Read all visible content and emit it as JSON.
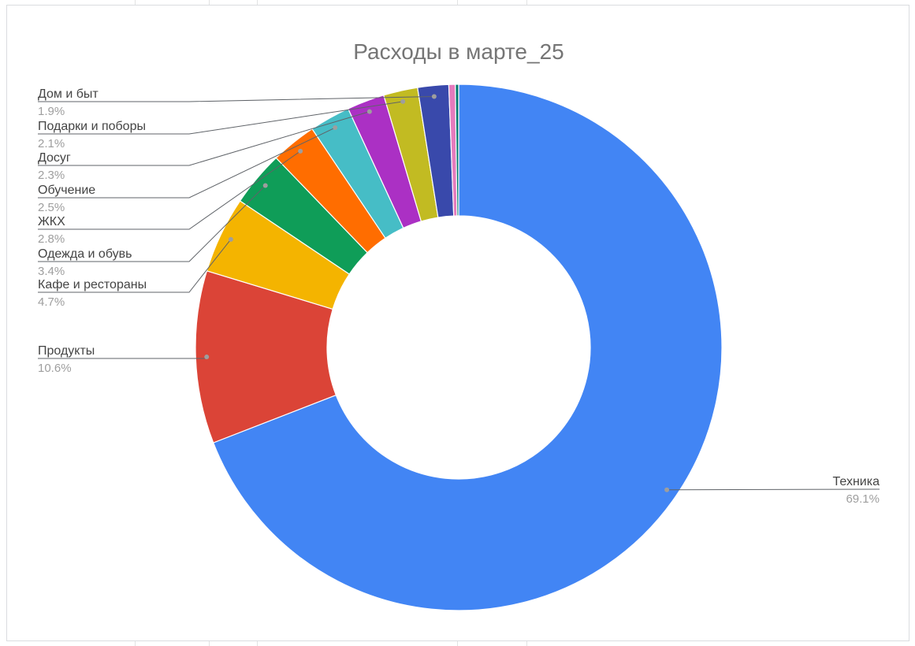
{
  "chart_data": {
    "type": "pie",
    "donut": true,
    "title": "Расходы в марте_25",
    "slices": [
      {
        "name": "Техника",
        "value": 69.1,
        "label": "69.1%",
        "color": "#4285f4"
      },
      {
        "name": "Продукты",
        "value": 10.6,
        "label": "10.6%",
        "color": "#db4437"
      },
      {
        "name": "Кафе и рестораны",
        "value": 4.7,
        "label": "4.7%",
        "color": "#f4b400"
      },
      {
        "name": "Одежда и обувь",
        "value": 3.4,
        "label": "3.4%",
        "color": "#0f9d58"
      },
      {
        "name": "ЖКХ",
        "value": 2.8,
        "label": "2.8%",
        "color": "#ff6d00"
      },
      {
        "name": "Обучение",
        "value": 2.5,
        "label": "2.5%",
        "color": "#46bdc6"
      },
      {
        "name": "Досуг",
        "value": 2.3,
        "label": "2.3%",
        "color": "#ab30c4"
      },
      {
        "name": "Подарки и поборы",
        "value": 2.1,
        "label": "2.1%",
        "color": "#c2bb22"
      },
      {
        "name": "Дом и быт",
        "value": 1.9,
        "label": "1.9%",
        "color": "#3949ab"
      },
      {
        "name": "",
        "value": 0.4,
        "label": "",
        "color": "#e57bbd"
      },
      {
        "name": "",
        "value": 0.2,
        "label": "",
        "color": "#00796b"
      }
    ]
  }
}
